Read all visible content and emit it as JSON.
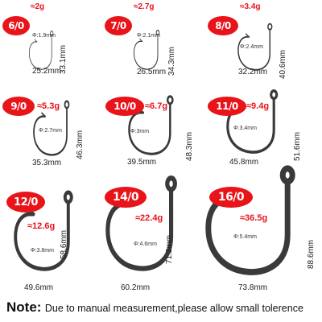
{
  "hooks": [
    {
      "size": "6/0",
      "weight": "≈2g",
      "diameter": "Φ:1.9mm",
      "height": "33.1mm",
      "width": "25.2mm"
    },
    {
      "size": "7/0",
      "weight": "≈2.7g",
      "diameter": "Φ:2.1mm",
      "height": "34.3mm",
      "width": "26.5mm"
    },
    {
      "size": "8/0",
      "weight": "≈3.4g",
      "diameter": "Φ:2.4mm",
      "height": "40.6mm",
      "width": "32.2mm"
    },
    {
      "size": "9/0",
      "weight": "≈5.3g",
      "diameter": "Φ:2.7mm",
      "height": "46.3mm",
      "width": "35.3mm"
    },
    {
      "size": "10/0",
      "weight": "≈6.7g",
      "diameter": "Φ:3mm",
      "height": "48.3mm",
      "width": "39.5mm"
    },
    {
      "size": "11/0",
      "weight": "≈9.4g",
      "diameter": "Φ:3.4mm",
      "height": "51.6mm",
      "width": "45.8mm"
    },
    {
      "size": "12/0",
      "weight": "≈12.6g",
      "diameter": "Φ:3.8mm",
      "height": "58.6mm",
      "width": "49.6mm"
    },
    {
      "size": "14/0",
      "weight": "≈22.4g",
      "diameter": "Φ:4.6mm",
      "height": "71.2mm",
      "width": "60.2mm"
    },
    {
      "size": "16/0",
      "weight": "≈36.5g",
      "diameter": "Φ:5.4mm",
      "height": "88.6mm",
      "width": "73.8mm"
    }
  ],
  "note": {
    "label": "Note:",
    "text": "Due to manual measurement,please allow small tolerence"
  },
  "colors": {
    "accent": "#e8141a",
    "hook": "#3a3a3a"
  }
}
